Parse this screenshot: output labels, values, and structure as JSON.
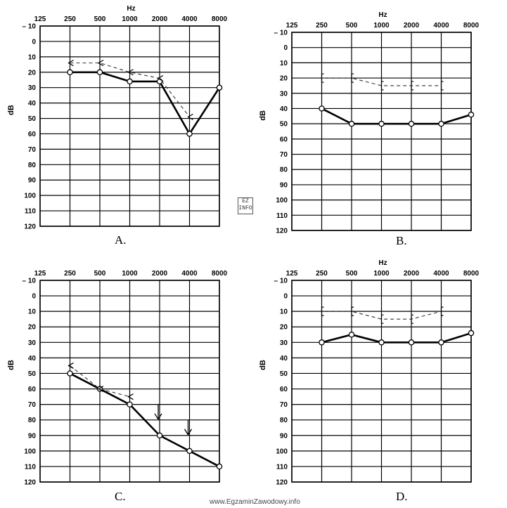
{
  "chart_data": [
    {
      "panel": "A.",
      "type": "line",
      "xlabel": "Hz",
      "ylabel": "dB",
      "x_ticks": [
        "125",
        "250",
        "500",
        "1000",
        "2000",
        "4000",
        "8000"
      ],
      "y_ticks": [
        "– 10",
        "0",
        "10",
        "20",
        "30",
        "40",
        "50",
        "60",
        "70",
        "80",
        "90",
        "100",
        "110",
        "120"
      ],
      "ylim": [
        -10,
        120
      ],
      "y_inverted": true,
      "grid": true,
      "series": [
        {
          "style": "solid",
          "marker": "circle",
          "x": [
            "250",
            "500",
            "1000",
            "2000",
            "4000",
            "8000"
          ],
          "values": [
            20,
            20,
            26,
            26,
            60,
            30
          ]
        },
        {
          "style": "dashed",
          "marker": "arrow",
          "x": [
            "250",
            "500",
            "1000",
            "2000",
            "4000"
          ],
          "values": [
            14,
            14,
            20,
            24,
            49
          ]
        }
      ]
    },
    {
      "panel": "B.",
      "type": "line",
      "xlabel": "Hz",
      "ylabel": "dB",
      "x_ticks": [
        "125",
        "250",
        "500",
        "1000",
        "2000",
        "4000",
        "8000"
      ],
      "y_ticks": [
        "– 10",
        "0",
        "10",
        "20",
        "30",
        "40",
        "50",
        "60",
        "70",
        "80",
        "90",
        "100",
        "110",
        "120"
      ],
      "ylim": [
        -10,
        120
      ],
      "y_inverted": true,
      "grid": true,
      "series": [
        {
          "style": "solid",
          "marker": "circle",
          "x": [
            "250",
            "500",
            "1000",
            "2000",
            "4000",
            "8000"
          ],
          "values": [
            40,
            50,
            50,
            50,
            50,
            44
          ]
        },
        {
          "style": "dashed",
          "marker": "bracket",
          "x": [
            "250",
            "500",
            "1000",
            "2000",
            "4000"
          ],
          "values": [
            20,
            20,
            25,
            25,
            25
          ]
        }
      ]
    },
    {
      "panel": "C.",
      "type": "line",
      "xlabel": "",
      "ylabel": "dB",
      "x_ticks": [
        "125",
        "250",
        "500",
        "1000",
        "2000",
        "4000",
        "8000"
      ],
      "y_ticks": [
        "– 10",
        "0",
        "10",
        "20",
        "30",
        "40",
        "50",
        "60",
        "70",
        "80",
        "90",
        "100",
        "110",
        "120"
      ],
      "ylim": [
        -10,
        120
      ],
      "y_inverted": true,
      "grid": true,
      "series": [
        {
          "style": "solid",
          "marker": "circle",
          "x": [
            "250",
            "500",
            "1000",
            "2000",
            "4000",
            "8000"
          ],
          "values": [
            50,
            60,
            70,
            90,
            100,
            110
          ]
        },
        {
          "style": "dashed",
          "marker": "arrow",
          "x": [
            "250",
            "500",
            "1000"
          ],
          "values": [
            45,
            60,
            65
          ]
        },
        {
          "style": "none",
          "marker": "down-arrow",
          "x": [
            "2000",
            "4000"
          ],
          "values": [
            80,
            90
          ]
        }
      ]
    },
    {
      "panel": "D.",
      "type": "line",
      "xlabel": "Hz",
      "ylabel": "dB",
      "x_ticks": [
        "125",
        "250",
        "500",
        "1000",
        "2000",
        "4000",
        "8000"
      ],
      "y_ticks": [
        "– 10",
        "0",
        "10",
        "20",
        "30",
        "40",
        "50",
        "60",
        "70",
        "80",
        "90",
        "100",
        "110",
        "120"
      ],
      "ylim": [
        -10,
        120
      ],
      "y_inverted": true,
      "grid": true,
      "series": [
        {
          "style": "solid",
          "marker": "circle",
          "x": [
            "250",
            "500",
            "1000",
            "2000",
            "4000",
            "8000"
          ],
          "values": [
            30,
            25,
            30,
            30,
            30,
            24
          ]
        },
        {
          "style": "dashed",
          "marker": "bracket",
          "x": [
            "250",
            "500",
            "1000",
            "2000",
            "4000"
          ],
          "values": [
            10,
            10,
            15,
            15,
            10
          ]
        }
      ]
    }
  ],
  "watermark": "www.EgzaminZawodowy.info",
  "logo_text": "EZ INFO"
}
